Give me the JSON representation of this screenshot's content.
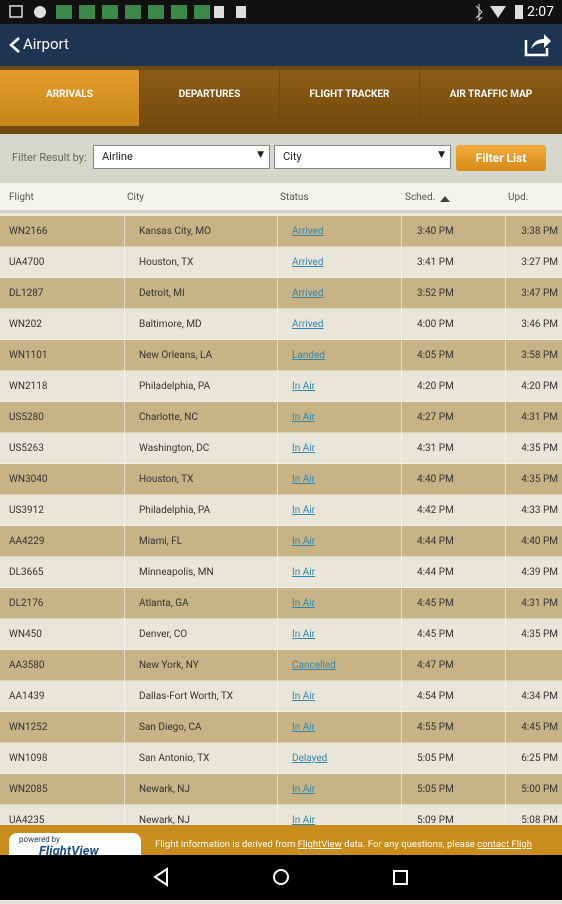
{
  "status_bar": {
    "time": "2:07"
  },
  "header": {
    "title": "Airport"
  },
  "tabs": [
    "ARRIVALS",
    "DEPARTURES",
    "FLIGHT TRACKER",
    "AIR TRAFFIC MAP"
  ],
  "filter": {
    "label": "Filter Result by:",
    "airline": "Airline",
    "city": "City",
    "button": "Filter List"
  },
  "table": {
    "columns": [
      "Flight",
      "City",
      "Status",
      "Sched.",
      "Upd."
    ],
    "rows": [
      [
        "WN2166",
        "Kansas City, MO",
        "Arrived",
        "3:40 PM",
        "3:38 PM"
      ],
      [
        "UA4700",
        "Houston, TX",
        "Arrived",
        "3:41 PM",
        "3:27 PM"
      ],
      [
        "DL1287",
        "Detroit, MI",
        "Arrived",
        "3:52 PM",
        "3:47 PM"
      ],
      [
        "WN202",
        "Baltimore, MD",
        "Arrived",
        "4:00 PM",
        "3:46 PM"
      ],
      [
        "WN1101",
        "New Orleans, LA",
        "Landed",
        "4:05 PM",
        "3:58 PM"
      ],
      [
        "WN2118",
        "Philadelphia, PA",
        "In Air",
        "4:20 PM",
        "4:20 PM"
      ],
      [
        "US5280",
        "Charlotte, NC",
        "In Air",
        "4:27 PM",
        "4:31 PM"
      ],
      [
        "US5263",
        "Washington, DC",
        "In Air",
        "4:31 PM",
        "4:35 PM"
      ],
      [
        "WN3040",
        "Houston, TX",
        "In Air",
        "4:40 PM",
        "4:35 PM"
      ],
      [
        "US3912",
        "Philadelphia, PA",
        "In Air",
        "4:42 PM",
        "4:33 PM"
      ],
      [
        "AA4229",
        "Miami, FL",
        "In Air",
        "4:44 PM",
        "4:40 PM"
      ],
      [
        "DL3665",
        "Minneapolis, MN",
        "In Air",
        "4:44 PM",
        "4:39 PM"
      ],
      [
        "DL2176",
        "Atlanta, GA",
        "In Air",
        "4:45 PM",
        "4:31 PM"
      ],
      [
        "WN450",
        "Denver, CO",
        "In Air",
        "4:45 PM",
        "4:35 PM"
      ],
      [
        "AA3580",
        "New York, NY",
        "Cancelled",
        "4:47 PM"
      ],
      [
        "AA1439",
        "Dallas-Fort Worth, TX",
        "In Air",
        "4:54 PM",
        "4:34 PM"
      ],
      [
        "WN1252",
        "San Diego, CA",
        "In Air",
        "4:55 PM",
        "4:45 PM"
      ],
      [
        "WN1098",
        "San Antonio, TX",
        "Delayed",
        "5:05 PM",
        "6:25 PM"
      ],
      [
        "WN2085",
        "Newark, NJ",
        "In Air",
        "5:05 PM",
        "5:00 PM"
      ],
      [
        "UA4235",
        "Newark, NJ",
        "In Air",
        "5:09 PM",
        "5:08 PM"
      ]
    ]
  },
  "footer": {
    "powered": "powered by",
    "brand": "FlightView",
    "text": "Flight information is derived from",
    "link1": "FlightView",
    "text2": "data. For any questions, please",
    "link2": "contact Fligh"
  }
}
